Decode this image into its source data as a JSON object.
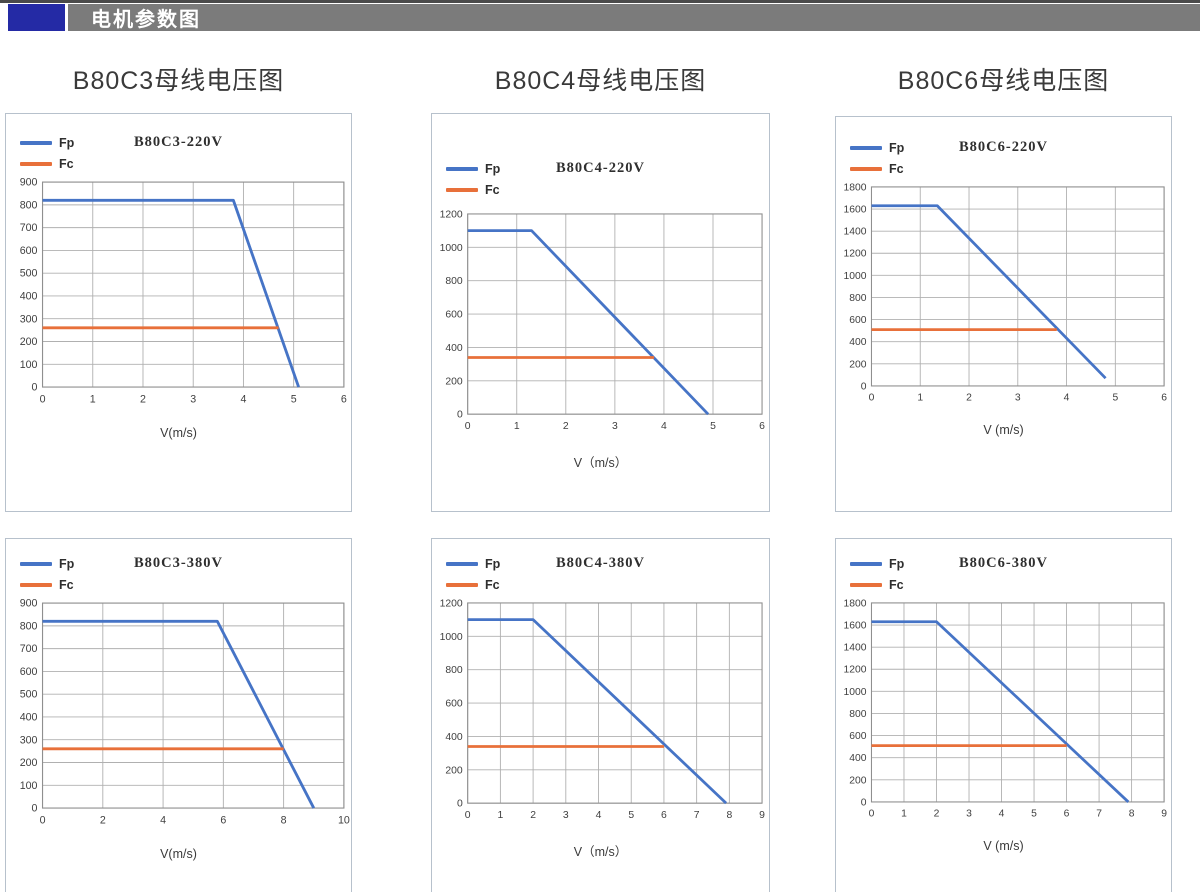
{
  "header": {
    "title": "电机参数图",
    "accent_color": "#242aa5",
    "bar_color": "#7b7b7b"
  },
  "columns": {
    "col1": "B80C3母线电压图",
    "col2": "B80C4母线电压图",
    "col3": "B80C6母线电压图"
  },
  "colors": {
    "fp": "#4674c6",
    "fc": "#e8703a",
    "grid": "#b0b0b0",
    "plot_border": "#8f8f8f"
  },
  "chart_data": [
    {
      "type": "line",
      "title": "B80C3-220V",
      "xlabel": "V(m/s)",
      "xlim": [
        0,
        6
      ],
      "xticks": [
        0,
        1,
        2,
        3,
        4,
        5,
        6
      ],
      "ylim": [
        0,
        900
      ],
      "yticks": [
        0,
        100,
        200,
        300,
        400,
        500,
        600,
        700,
        800,
        900
      ],
      "grid": true,
      "legend_position": "top-left",
      "series": [
        {
          "name": "Fp",
          "color": "#4674c6",
          "points": [
            [
              0,
              820
            ],
            [
              3.8,
              820
            ],
            [
              5.1,
              0
            ]
          ]
        },
        {
          "name": "Fc",
          "color": "#e8703a",
          "points": [
            [
              0,
              260
            ],
            [
              4.7,
              260
            ]
          ]
        }
      ]
    },
    {
      "type": "line",
      "title": "B80C4-220V",
      "xlabel": "V（m/s）",
      "xlim": [
        0,
        6
      ],
      "xticks": [
        0,
        1,
        2,
        3,
        4,
        5,
        6
      ],
      "ylim": [
        0,
        1200
      ],
      "yticks": [
        0,
        200,
        400,
        600,
        800,
        1000,
        1200
      ],
      "grid": true,
      "legend_position": "top-left",
      "series": [
        {
          "name": "Fp",
          "color": "#4674c6",
          "points": [
            [
              0,
              1100
            ],
            [
              1.3,
              1100
            ],
            [
              4.9,
              0
            ]
          ]
        },
        {
          "name": "Fc",
          "color": "#e8703a",
          "points": [
            [
              0,
              340
            ],
            [
              3.8,
              340
            ]
          ]
        }
      ]
    },
    {
      "type": "line",
      "title": "B80C6-220V",
      "xlabel": "V (m/s)",
      "xlim": [
        0,
        6
      ],
      "xticks": [
        0,
        1,
        2,
        3,
        4,
        5,
        6
      ],
      "ylim": [
        0,
        1800
      ],
      "yticks": [
        0,
        200,
        400,
        600,
        800,
        1000,
        1200,
        1400,
        1600,
        1800
      ],
      "grid": true,
      "legend_position": "top-left",
      "series": [
        {
          "name": "Fp",
          "color": "#4674c6",
          "points": [
            [
              0,
              1630
            ],
            [
              1.35,
              1630
            ],
            [
              4.8,
              70
            ]
          ]
        },
        {
          "name": "Fc",
          "color": "#e8703a",
          "points": [
            [
              0,
              510
            ],
            [
              3.8,
              510
            ]
          ]
        }
      ]
    },
    {
      "type": "line",
      "title": "B80C3-380V",
      "xlabel": "V(m/s)",
      "xlim": [
        0,
        10
      ],
      "xticks": [
        0,
        2,
        4,
        6,
        8,
        10
      ],
      "ylim": [
        0,
        900
      ],
      "yticks": [
        0,
        100,
        200,
        300,
        400,
        500,
        600,
        700,
        800,
        900
      ],
      "grid": true,
      "legend_position": "top-left",
      "series": [
        {
          "name": "Fp",
          "color": "#4674c6",
          "points": [
            [
              0,
              820
            ],
            [
              5.8,
              820
            ],
            [
              9,
              0
            ]
          ]
        },
        {
          "name": "Fc",
          "color": "#e8703a",
          "points": [
            [
              0,
              260
            ],
            [
              8,
              260
            ]
          ]
        }
      ]
    },
    {
      "type": "line",
      "title": "B80C4-380V",
      "xlabel": "V（m/s）",
      "xlim": [
        0,
        9
      ],
      "xticks": [
        0,
        1,
        2,
        3,
        4,
        5,
        6,
        7,
        8,
        9
      ],
      "ylim": [
        0,
        1200
      ],
      "yticks": [
        0,
        200,
        400,
        600,
        800,
        1000,
        1200
      ],
      "grid": true,
      "legend_position": "top-left",
      "series": [
        {
          "name": "Fp",
          "color": "#4674c6",
          "points": [
            [
              0,
              1100
            ],
            [
              2,
              1100
            ],
            [
              7.9,
              0
            ]
          ]
        },
        {
          "name": "Fc",
          "color": "#e8703a",
          "points": [
            [
              0,
              340
            ],
            [
              6,
              340
            ]
          ]
        }
      ]
    },
    {
      "type": "line",
      "title": "B80C6-380V",
      "xlabel": "V (m/s)",
      "xlim": [
        0,
        9
      ],
      "xticks": [
        0,
        1,
        2,
        3,
        4,
        5,
        6,
        7,
        8,
        9
      ],
      "ylim": [
        0,
        1800
      ],
      "yticks": [
        0,
        200,
        400,
        600,
        800,
        1000,
        1200,
        1400,
        1600,
        1800
      ],
      "grid": true,
      "legend_position": "top-left",
      "series": [
        {
          "name": "Fp",
          "color": "#4674c6",
          "points": [
            [
              0,
              1630
            ],
            [
              2,
              1630
            ],
            [
              7.9,
              0
            ]
          ]
        },
        {
          "name": "Fc",
          "color": "#e8703a",
          "points": [
            [
              0,
              510
            ],
            [
              6,
              510
            ]
          ]
        }
      ]
    }
  ]
}
